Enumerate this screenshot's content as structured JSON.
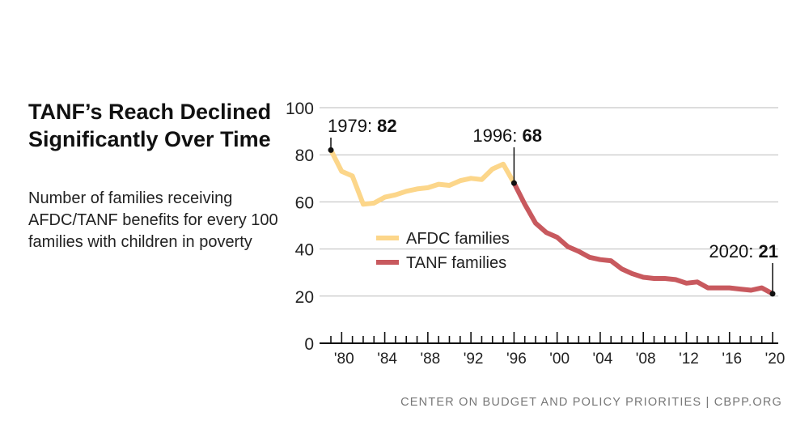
{
  "title": "TANF’s Reach Declined Significantly Over Time",
  "subtitle": "Number of families receiving AFDC/TANF benefits for every 100 families with children in poverty",
  "source": "CENTER ON BUDGET AND POLICY PRIORITIES | CBPP.ORG",
  "colors": {
    "afdc": "#fcd68a",
    "tanf": "#c8595e",
    "grid": "#bbbbbb",
    "axis": "#111111"
  },
  "chart_data": {
    "type": "line",
    "title": "TANF’s Reach Declined Significantly Over Time",
    "xlabel": "",
    "ylabel": "",
    "xlim": [
      1979,
      2020
    ],
    "ylim": [
      0,
      100
    ],
    "yticks": [
      0,
      20,
      40,
      60,
      80,
      100
    ],
    "ytick_labels": [
      "0",
      "20",
      "40",
      "60",
      "80",
      "100"
    ],
    "xticks": [
      1980,
      1984,
      1988,
      1992,
      1996,
      2000,
      2004,
      2008,
      2012,
      2016,
      2020
    ],
    "xtick_labels": [
      "'80",
      "'84",
      "'88",
      "'92",
      "'96",
      "'00",
      "'04",
      "'08",
      "'12",
      "'16",
      "'20"
    ],
    "grid": true,
    "series": [
      {
        "name": "AFDC families",
        "x": [
          1979,
          1980,
          1981,
          1982,
          1983,
          1984,
          1985,
          1986,
          1987,
          1988,
          1989,
          1990,
          1991,
          1992,
          1993,
          1994,
          1995,
          1996
        ],
        "values": [
          82,
          73,
          71,
          59,
          59.5,
          62,
          63,
          64.5,
          65.5,
          66,
          67.5,
          67,
          69,
          70,
          69.5,
          74,
          76,
          68
        ]
      },
      {
        "name": "TANF families",
        "x": [
          1996,
          1997,
          1998,
          1999,
          2000,
          2001,
          2002,
          2003,
          2004,
          2005,
          2006,
          2007,
          2008,
          2009,
          2010,
          2011,
          2012,
          2013,
          2014,
          2015,
          2016,
          2017,
          2018,
          2019,
          2020
        ],
        "values": [
          68,
          59,
          51,
          47,
          45,
          41,
          39,
          36.5,
          35.5,
          35,
          31.5,
          29.5,
          28,
          27.5,
          27.5,
          27,
          25.5,
          26,
          23.5,
          23.5,
          23.5,
          23,
          22.5,
          23.5,
          21
        ]
      }
    ],
    "annotations": [
      {
        "x": 1979,
        "y": 82,
        "year": "1979:",
        "value": "82"
      },
      {
        "x": 1996,
        "y": 68,
        "year": "1996:",
        "value": "68"
      },
      {
        "x": 2020,
        "y": 21,
        "year": "2020:",
        "value": "21"
      }
    ],
    "legend": [
      "AFDC families",
      "TANF families"
    ],
    "legend_position": "center"
  }
}
